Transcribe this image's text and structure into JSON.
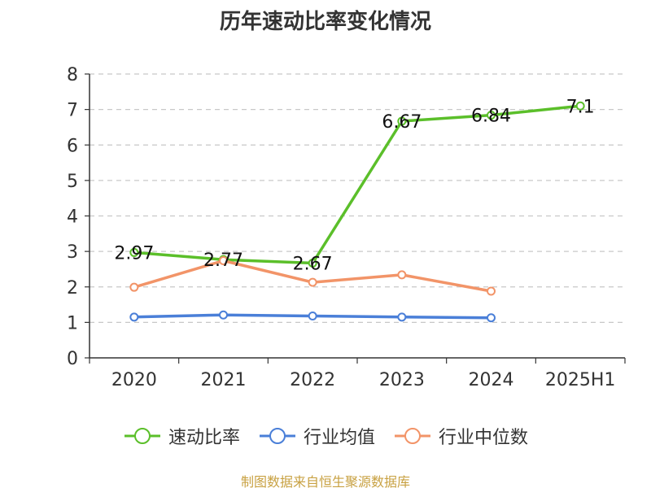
{
  "chart_data": {
    "type": "line",
    "title": "历年速动比率变化情况",
    "categories": [
      "2020",
      "2021",
      "2022",
      "2023",
      "2024",
      "2025H1"
    ],
    "ylim": [
      0,
      8
    ],
    "yticks": [
      "0",
      "1",
      "2",
      "3",
      "4",
      "5",
      "6",
      "7",
      "8"
    ],
    "grid": true,
    "legend_position": "bottom",
    "series": [
      {
        "name": "速动比率",
        "color": "#5bbf2a",
        "values": [
          2.97,
          2.77,
          2.67,
          6.67,
          6.84,
          7.1
        ],
        "labels": [
          "2.97",
          "2.77",
          "2.67",
          "6.67",
          "6.84",
          "7.1"
        ]
      },
      {
        "name": "行业均值",
        "color": "#4a7fd8",
        "values": [
          1.15,
          1.21,
          1.18,
          1.15,
          1.13,
          null
        ]
      },
      {
        "name": "行业中位数",
        "color": "#f29468",
        "values": [
          1.99,
          2.74,
          2.13,
          2.34,
          1.88,
          null
        ]
      }
    ]
  },
  "source_text": "制图数据来自恒生聚源数据库"
}
